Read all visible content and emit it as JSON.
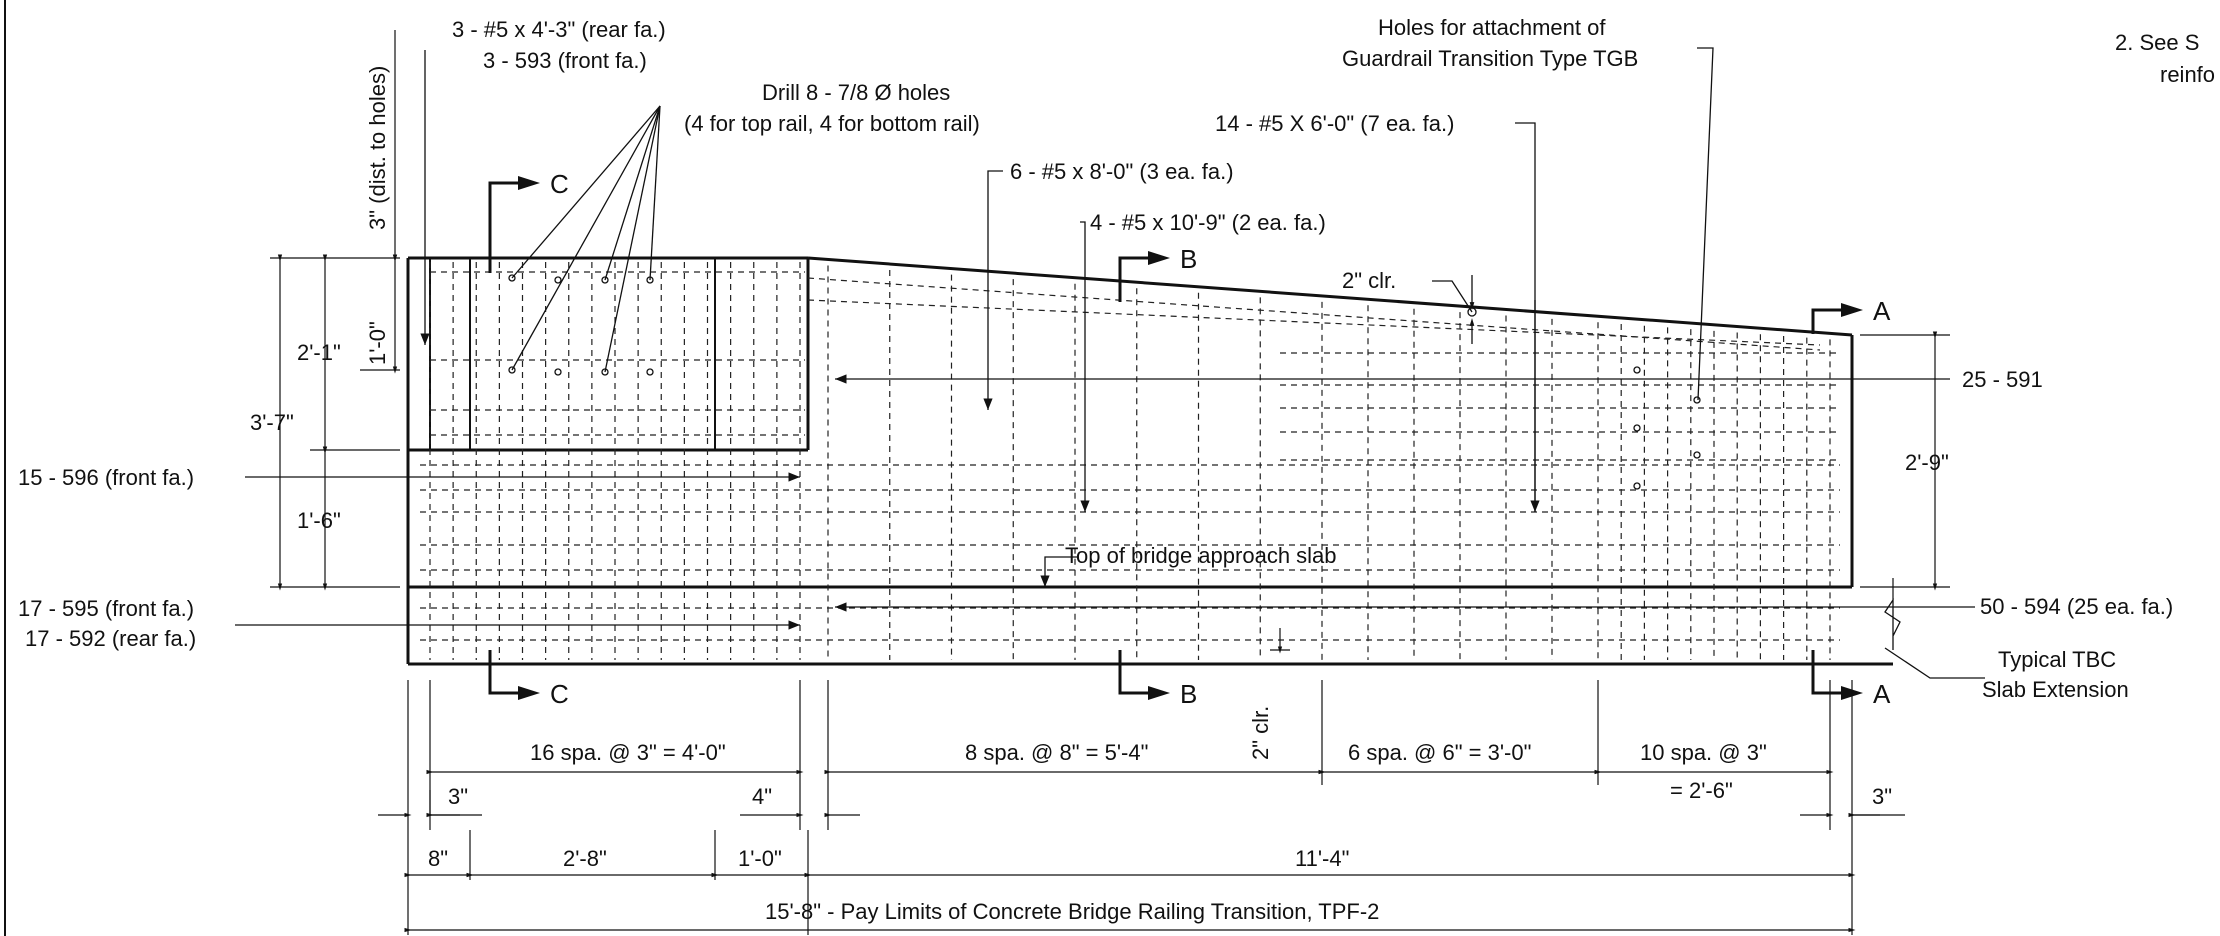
{
  "notes": {
    "note2_line1": "2.  See S",
    "note2_line2": "reinfo"
  },
  "callouts": {
    "rear_bars_1": "3 - #5 x 4'-3\" (rear fa.)",
    "rear_bars_2": "3 - 593 (front fa.)",
    "drill_1": "Drill 8 - 7/8 Ø holes",
    "drill_2": "(4 for top rail, 4 for bottom rail)",
    "holes_1": "Holes for attachment of",
    "holes_2": "Guardrail Transition Type TGB",
    "bars_14": "14 - #5 X 6'-0\" (7 ea. fa.)",
    "bars_6": "6 - #5 x 8'-0\" (3 ea. fa.)",
    "bars_4": "4 - #5 x 10'-9\" (2 ea. fa.)",
    "clr_2": "2\" clr.",
    "bars_25": "25 - 591",
    "bars_15": "15 - 596 (front fa.)",
    "top_slab": "Top of bridge approach slab",
    "bars_17a": "17 - 595 (front fa.)",
    "bars_17b": "17 - 592 (rear fa.)",
    "bars_50": "50 - 594 (25 ea. fa.)",
    "tbc_1": "Typical TBC",
    "tbc_2": "Slab Extension"
  },
  "sections": {
    "a": "A",
    "b": "B",
    "c": "C"
  },
  "dimensions": {
    "dist_holes": "3\" (dist. to holes)",
    "d_1_0_vert": "1'-0\"",
    "d_2_1": "2'-1\"",
    "d_3_7": "3'-7\"",
    "d_1_6": "1'-6\"",
    "d_2_9": "2'-9\"",
    "clr_vert": "2\" clr.",
    "spa_16": "16 spa. @ 3\" = 4'-0\"",
    "spa_8": "8 spa. @ 8\" = 5'-4\"",
    "spa_6": "6 spa. @ 6\" = 3'-0\"",
    "spa_10a": "10 spa. @ 3\"",
    "spa_10b": "= 2'-6\"",
    "d_3_left": "3\"",
    "d_4": "4\"",
    "d_3_right": "3\"",
    "d_8": "8\"",
    "d_2_8": "2'-8\"",
    "d_1_0": "1'-0\"",
    "d_11_4": "11'-4\"",
    "pay_limits": "15'-8\" - Pay Limits of Concrete Bridge Railing Transition, TPF-2"
  }
}
